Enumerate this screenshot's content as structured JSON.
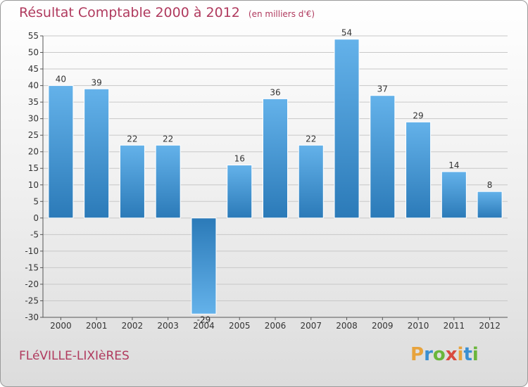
{
  "header": {
    "title": "Résultat Comptable 2000 à 2012",
    "unit": "(en milliers d'€)"
  },
  "footer": {
    "commune": "FLéVILLE-LIXIèRES",
    "logo_letters": [
      "P",
      "r",
      "o",
      "x",
      "i",
      "t",
      "i"
    ],
    "logo_colors": [
      "#e8a33c",
      "#3a8fd1",
      "#6ab63b",
      "#d94b3f",
      "#e8a33c",
      "#3a8fd1",
      "#6ab63b"
    ]
  },
  "colors": {
    "bar_light": "#64b2ea",
    "bar_dark": "#2b7ab8",
    "grid": "#c8c8c8",
    "title": "#b03a5e"
  },
  "chart_data": {
    "type": "bar",
    "title": "Résultat Comptable 2000 à 2012",
    "ylabel": "en milliers d'€",
    "xlabel": "",
    "categories": [
      "2000",
      "2001",
      "2002",
      "2003",
      "2004",
      "2005",
      "2006",
      "2007",
      "2008",
      "2009",
      "2010",
      "2011",
      "2012"
    ],
    "values": [
      40,
      39,
      22,
      22,
      -29,
      16,
      36,
      22,
      54,
      37,
      29,
      14,
      8
    ],
    "ylim": [
      -30,
      55
    ],
    "yticks": [
      "-30",
      "-25",
      "-20",
      "-15",
      "-10",
      "-5",
      "0",
      "5",
      "10",
      "15",
      "20",
      "25",
      "30",
      "35",
      "40",
      "45",
      "50",
      "55"
    ],
    "grid": true
  }
}
